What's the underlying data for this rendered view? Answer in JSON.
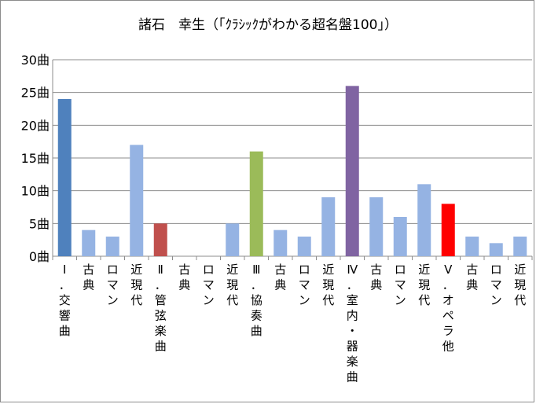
{
  "chart_data": {
    "type": "bar",
    "title": "諸石　幸生（「ｸﾗｼｯｸがわかる超名盤100」）",
    "xlabel": "",
    "ylabel": "",
    "ylim": [
      0,
      30
    ],
    "y_ticks": [
      "0曲",
      "5曲",
      "10曲",
      "15曲",
      "20曲",
      "25曲",
      "30曲"
    ],
    "y_tick_values": [
      0,
      5,
      10,
      15,
      20,
      25,
      30
    ],
    "grid": true,
    "legend": "none",
    "categories": [
      "Ⅰ．交響曲",
      "古典",
      "ロマン",
      "近現代",
      "Ⅱ．管弦楽曲",
      "古典",
      "ロマン",
      "近現代",
      "Ⅲ．協奏曲",
      "古典",
      "ロマン",
      "近現代",
      "Ⅳ．室内・器楽曲",
      "古典",
      "ロマン",
      "近現代",
      "Ⅴ．オペラ他",
      "古典",
      "ロマン",
      "近現代"
    ],
    "values": [
      24,
      4,
      3,
      17,
      5,
      0,
      0,
      5,
      16,
      4,
      3,
      9,
      26,
      9,
      6,
      11,
      8,
      3,
      2,
      3
    ],
    "colors": [
      "#4f81bd",
      "#95b3e3",
      "#95b3e3",
      "#95b3e3",
      "#c0504d",
      "#95b3e3",
      "#95b3e3",
      "#95b3e3",
      "#9bbb59",
      "#95b3e3",
      "#95b3e3",
      "#95b3e3",
      "#8064a2",
      "#95b3e3",
      "#95b3e3",
      "#95b3e3",
      "#ff0000",
      "#95b3e3",
      "#95b3e3",
      "#95b3e3"
    ]
  }
}
